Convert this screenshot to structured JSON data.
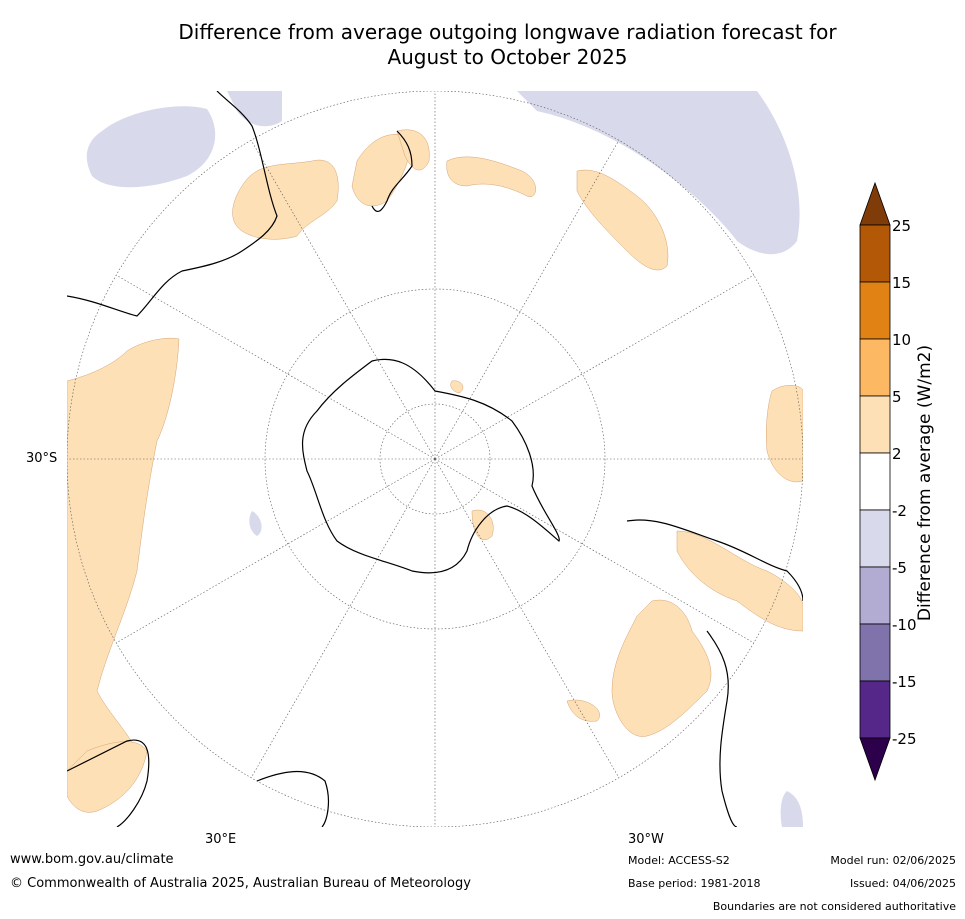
{
  "title_line1": "Difference from average outgoing longwave radiation forecast for",
  "title_line2": "August to October 2025",
  "map": {
    "projection": "south polar stereographic",
    "lat_label": "30°S",
    "lon_labels": [
      "30°E",
      "30°W"
    ]
  },
  "colorbar": {
    "title": "Difference from average (W/m2)",
    "ticks": [
      "25",
      "15",
      "10",
      "5",
      "2",
      "-2",
      "-5",
      "-10",
      "-15",
      "-25"
    ],
    "colors": [
      "#b35806",
      "#e08214",
      "#fdb863",
      "#fee0b6",
      "#ffffff",
      "#d8daeb",
      "#b2abd2",
      "#8073ac",
      "#542788"
    ],
    "extend_top_color": "#7f3b08",
    "extend_bottom_color": "#2d004b"
  },
  "colors": {
    "positive_anomaly": "#fee0b6",
    "negative_anomaly": "#d8daeb",
    "coastline": "#000000"
  },
  "footer": {
    "website": "www.bom.gov.au/climate",
    "copyright": "© Commonwealth of Australia 2025, Australian Bureau of Meteorology",
    "model": "Model: ACCESS-S2",
    "base_period": "Base period: 1981-2018",
    "model_run": "Model run: 02/06/2025",
    "issued": "Issued: 04/06/2025",
    "disclaimer": "Boundaries are not considered authoritative"
  }
}
